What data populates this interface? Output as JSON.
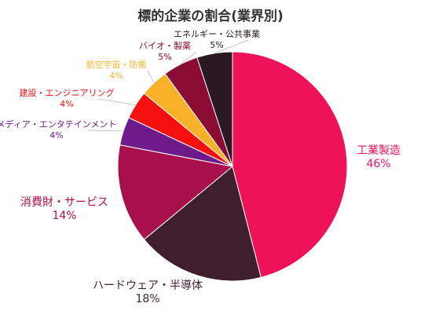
{
  "chart_data": {
    "type": "pie",
    "title": "標的企業の割合(業界別)",
    "slices": [
      {
        "label": "工業製造",
        "percent_label": "46%",
        "value": 46,
        "color": "#EE1259"
      },
      {
        "label": "ハードウェア・半導体",
        "percent_label": "18%",
        "value": 18,
        "color": "#3F1E2E"
      },
      {
        "label": "消費財・サービス",
        "percent_label": "14%",
        "value": 14,
        "color": "#A8104B"
      },
      {
        "label": "メディア・エンタテインメント",
        "percent_label": "4%",
        "value": 4,
        "color": "#6E1A8A"
      },
      {
        "label": "建設・エンジニアリング",
        "percent_label": "4%",
        "value": 4,
        "color": "#F50F0F"
      },
      {
        "label": "航空宇宙・防衛",
        "percent_label": "4%",
        "value": 4,
        "color": "#FAB12A"
      },
      {
        "label": "バイオ・製薬",
        "percent_label": "5%",
        "value": 5,
        "color": "#8A0B33"
      },
      {
        "label": "エネルギー・公共事業",
        "percent_label": "5%",
        "value": 5,
        "color": "#2A1822"
      }
    ]
  }
}
